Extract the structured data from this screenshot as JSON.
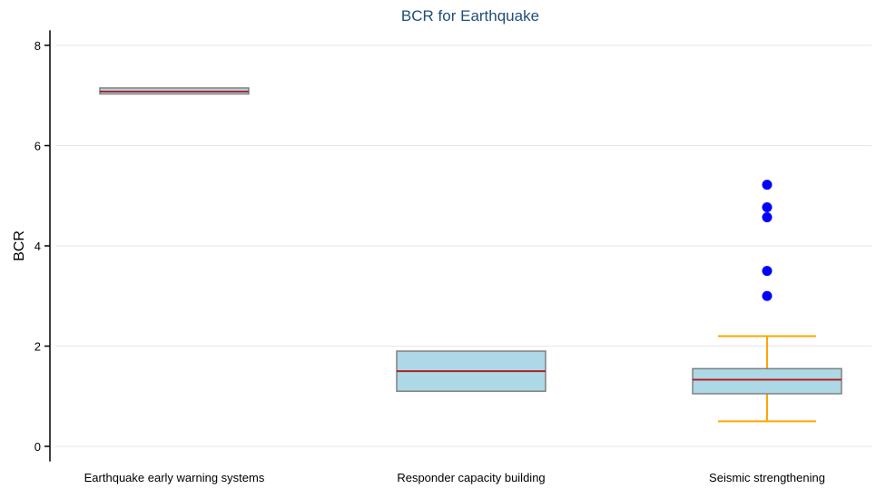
{
  "chart_data": {
    "type": "box",
    "title": "BCR for Earthquake",
    "xlabel": "",
    "ylabel": "BCR",
    "ylim": [
      -0.3,
      8.3
    ],
    "yticks": [
      0,
      2,
      4,
      6,
      8
    ],
    "grid": true,
    "categories": [
      "Earthquake early warning systems",
      "Responder capacity building",
      "Seismic strengthening"
    ],
    "boxes": [
      {
        "category": "Earthquake early warning systems",
        "q1": 7.03,
        "median": 7.08,
        "q3": 7.15,
        "whisker_low": null,
        "whisker_high": null,
        "outliers": []
      },
      {
        "category": "Responder capacity building",
        "q1": 1.1,
        "median": 1.5,
        "q3": 1.9,
        "whisker_low": null,
        "whisker_high": null,
        "outliers": []
      },
      {
        "category": "Seismic strengthening",
        "q1": 1.05,
        "median": 1.33,
        "q3": 1.55,
        "whisker_low": 0.5,
        "whisker_high": 2.2,
        "outliers": [
          3.0,
          3.5,
          4.57,
          4.77,
          5.22
        ]
      }
    ],
    "colors": {
      "box_fill": "#add8e6",
      "box_edge": "#808080",
      "median": "#b22222",
      "whisker": "#ffa500",
      "outlier": "#0000ff",
      "grid": "#e6e6e6",
      "axis": "#000000",
      "title": "#1f4e79"
    }
  }
}
